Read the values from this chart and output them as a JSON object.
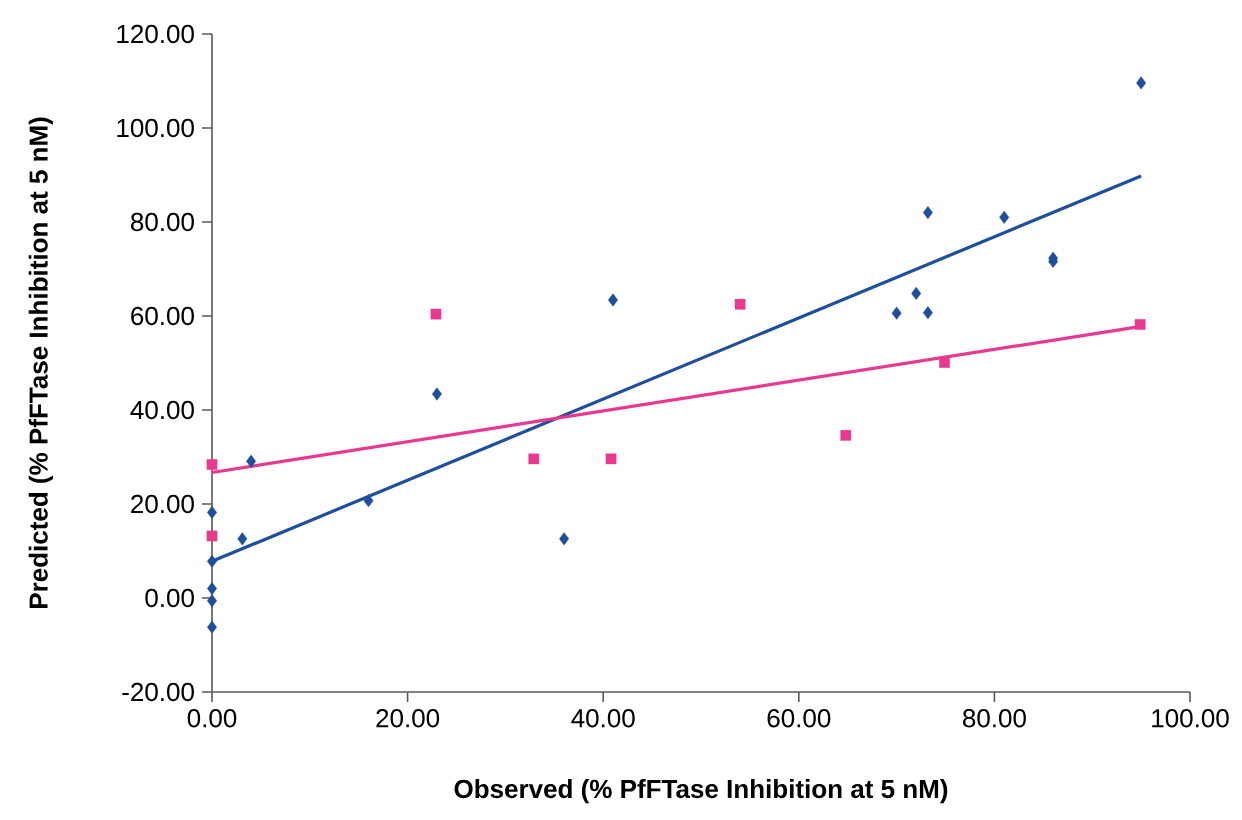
{
  "chart_data": {
    "type": "scatter",
    "xlabel": "Observed (% PfFTase Inhibition at 5 nM)",
    "ylabel": "Predicted  (% PfFTase Inhibition at 5 nM)",
    "xlim": [
      0,
      100
    ],
    "ylim": [
      -20,
      120
    ],
    "xticks": [
      {
        "value": 0,
        "label": "0.00"
      },
      {
        "value": 20,
        "label": "20.00"
      },
      {
        "value": 40,
        "label": "40.00"
      },
      {
        "value": 60,
        "label": "60.00"
      },
      {
        "value": 80,
        "label": "80.00"
      },
      {
        "value": 100,
        "label": "100.00"
      }
    ],
    "yticks": [
      {
        "value": -20,
        "label": "-20.00"
      },
      {
        "value": 0,
        "label": "0.00"
      },
      {
        "value": 20,
        "label": "20.00"
      },
      {
        "value": 40,
        "label": "40.00"
      },
      {
        "value": 60,
        "label": "60.00"
      },
      {
        "value": 80,
        "label": "80.00"
      },
      {
        "value": 100,
        "label": "100.00"
      },
      {
        "value": 120,
        "label": "120.00"
      }
    ],
    "grid": false,
    "series": [
      {
        "type": "scatter",
        "marker": "diamond",
        "color": "#1f4e9c",
        "x": [
          0,
          0,
          0,
          0,
          0,
          3.1,
          4.0,
          16.0,
          23.0,
          36.0,
          41.0,
          70.0,
          72.0,
          73.2,
          73.2,
          81.0,
          86.0,
          86.0,
          95.0
        ],
        "values": [
          18.2,
          7.8,
          2.0,
          -0.6,
          -6.2,
          12.6,
          29.1,
          20.7,
          43.4,
          12.6,
          63.4,
          60.6,
          64.8,
          82.0,
          60.7,
          81.0,
          72.3,
          71.6,
          109.6
        ]
      },
      {
        "type": "scatter",
        "marker": "square",
        "color": "#e8388f",
        "x": [
          0,
          0,
          22.9,
          32.9,
          40.8,
          54.0,
          64.8,
          74.9,
          94.9
        ],
        "values": [
          28.4,
          13.2,
          60.4,
          29.6,
          29.6,
          62.5,
          34.6,
          50.1,
          58.2
        ]
      },
      {
        "type": "line",
        "marker": "none",
        "color": "#1f4e9c",
        "x": [
          0,
          95.0
        ],
        "values": [
          7.8,
          89.8
        ]
      },
      {
        "type": "line",
        "marker": "none",
        "color": "#e8388f",
        "x": [
          0,
          95.0
        ],
        "values": [
          26.7,
          57.8
        ]
      }
    ]
  }
}
